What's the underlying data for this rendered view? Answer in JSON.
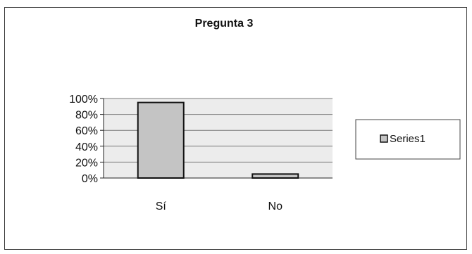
{
  "chart_data": {
    "type": "bar",
    "title": "Pregunta 3",
    "categories": [
      "Sí",
      "No"
    ],
    "series": [
      {
        "name": "Series1",
        "values": [
          95,
          5
        ]
      }
    ],
    "ylim": [
      0,
      100
    ],
    "yticks": [
      "0%",
      "20%",
      "40%",
      "60%",
      "80%",
      "100%"
    ],
    "xlabel": "",
    "ylabel": "",
    "grid": true,
    "legend_position": "right",
    "colors": {
      "bar_fill": "#c4c4c4",
      "bar_stroke": "#111111",
      "plot_background": "#ececec",
      "gridline": "#7a7a7a"
    }
  }
}
